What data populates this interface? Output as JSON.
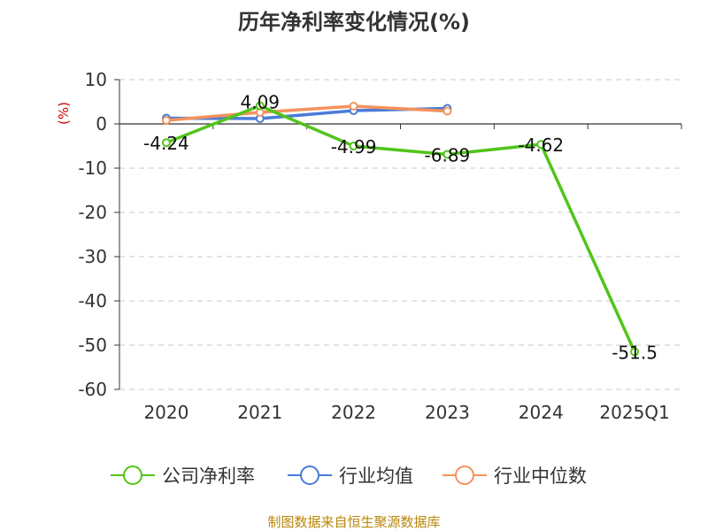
{
  "chart_data": {
    "type": "line",
    "title": "历年净利率变化情况(%)",
    "ylabel": "(%)",
    "categories": [
      "2020",
      "2021",
      "2022",
      "2023",
      "2024",
      "2025Q1"
    ],
    "yticks": [
      "10",
      "0",
      "-10",
      "-20",
      "-30",
      "-40",
      "-50",
      "-60"
    ],
    "ylim": [
      -60,
      10
    ],
    "grid": true,
    "legend_position": "bottom",
    "series": [
      {
        "name": "公司净利率",
        "color": "#52c41a",
        "values": [
          -4.24,
          4.09,
          -4.99,
          -6.89,
          -4.62,
          -51.5
        ],
        "labels": [
          "-4.24",
          "4.09",
          "-4.99",
          "-6.89",
          "-4.62",
          "-51.5"
        ]
      },
      {
        "name": "行业均值",
        "color": "#4a7bd9",
        "values": [
          1.3,
          1.2,
          3.0,
          3.5,
          null,
          null
        ]
      },
      {
        "name": "行业中位数",
        "color": "#f4925e",
        "values": [
          0.8,
          2.6,
          4.0,
          2.9,
          null,
          null
        ]
      }
    ]
  },
  "footer": {
    "source": "制图数据来自恒生聚源数据库"
  }
}
